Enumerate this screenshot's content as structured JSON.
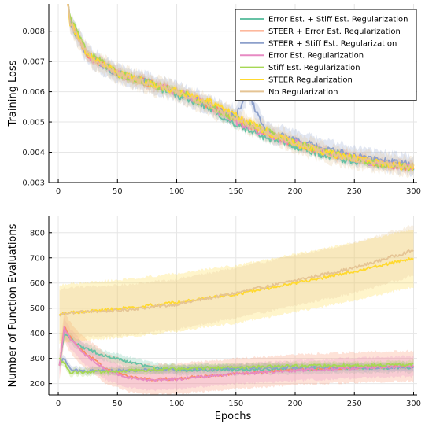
{
  "chart_data": [
    {
      "type": "line",
      "ylabel": "Training Loss",
      "xlabel": "",
      "xlim": [
        -8,
        303
      ],
      "ylim": [
        0.003,
        0.0089
      ],
      "xticks": [
        0,
        50,
        100,
        150,
        200,
        250,
        300
      ],
      "yticks": [
        0.003,
        0.004,
        0.005,
        0.006,
        0.007,
        0.008
      ],
      "ytick_labels": [
        "0.003",
        "0.004",
        "0.005",
        "0.006",
        "0.007",
        "0.008"
      ],
      "grid": true,
      "legend_position": "top-right",
      "series": [
        {
          "name": "Error Est. + Stiff Est. Regularization",
          "color": "#66c2a5",
          "x": [
            1,
            10,
            25,
            50,
            75,
            100,
            125,
            150,
            175,
            200,
            225,
            250,
            275,
            300
          ],
          "y": [
            0.0115,
            0.0083,
            0.0072,
            0.0066,
            0.0063,
            0.0059,
            0.0055,
            0.0049,
            0.0045,
            0.0042,
            0.0039,
            0.0037,
            0.0036,
            0.0035
          ],
          "band": 0.0001
        },
        {
          "name": "STEER + Error Est. Regularization",
          "color": "#fc8d62",
          "x": [
            1,
            10,
            25,
            50,
            75,
            100,
            125,
            150,
            175,
            200,
            225,
            250,
            275,
            300
          ],
          "y": [
            0.0115,
            0.0083,
            0.0072,
            0.0066,
            0.0063,
            0.006,
            0.0056,
            0.0051,
            0.0046,
            0.0043,
            0.004,
            0.0038,
            0.0036,
            0.0035
          ],
          "band": 0.00015
        },
        {
          "name": "STEER + Stiff Est. Regularization",
          "color": "#8da0cb",
          "x": [
            1,
            10,
            25,
            50,
            75,
            100,
            125,
            150,
            160,
            175,
            200,
            225,
            250,
            275,
            300
          ],
          "y": [
            0.0115,
            0.0083,
            0.0072,
            0.0066,
            0.0063,
            0.006,
            0.0056,
            0.0052,
            0.006,
            0.0047,
            0.0044,
            0.0041,
            0.0039,
            0.0037,
            0.0036
          ],
          "band": 0.0003
        },
        {
          "name": "Error Est. Regularization",
          "color": "#e78ac3",
          "x": [
            1,
            10,
            25,
            50,
            75,
            100,
            125,
            150,
            175,
            200,
            225,
            250,
            275,
            300
          ],
          "y": [
            0.0115,
            0.0083,
            0.0072,
            0.0066,
            0.0063,
            0.006,
            0.0056,
            0.005,
            0.0046,
            0.0043,
            0.004,
            0.0038,
            0.0036,
            0.0035
          ],
          "band": 0.0001
        },
        {
          "name": "Stiff Est. Regularization",
          "color": "#a6d854",
          "x": [
            1,
            10,
            25,
            50,
            75,
            100,
            125,
            150,
            175,
            200,
            225,
            250,
            275,
            300
          ],
          "y": [
            0.0115,
            0.0084,
            0.0073,
            0.0066,
            0.0063,
            0.006,
            0.0056,
            0.0051,
            0.0047,
            0.0043,
            0.004,
            0.0038,
            0.0036,
            0.0035
          ],
          "band": 0.0001
        },
        {
          "name": "STEER Regularization",
          "color": "#ffd92f",
          "x": [
            1,
            10,
            25,
            50,
            75,
            100,
            125,
            150,
            175,
            200,
            225,
            250,
            275,
            300
          ],
          "y": [
            0.0115,
            0.0083,
            0.0072,
            0.0066,
            0.0063,
            0.006,
            0.0057,
            0.0052,
            0.0047,
            0.0043,
            0.004,
            0.0038,
            0.0036,
            0.0035
          ],
          "band": 0.0001
        },
        {
          "name": "No Regularization",
          "color": "#e5c494",
          "x": [
            1,
            10,
            25,
            50,
            75,
            100,
            125,
            150,
            175,
            200,
            225,
            250,
            275,
            300
          ],
          "y": [
            0.0115,
            0.0083,
            0.0072,
            0.0066,
            0.0063,
            0.006,
            0.0056,
            0.0051,
            0.0047,
            0.0043,
            0.004,
            0.0038,
            0.0036,
            0.0035
          ],
          "band": 0.0003
        }
      ]
    },
    {
      "type": "line",
      "ylabel": "Number of Function Evaluations",
      "xlabel": "Epochs",
      "xlim": [
        -8,
        303
      ],
      "ylim": [
        155,
        865
      ],
      "xticks": [
        0,
        50,
        100,
        150,
        200,
        250,
        300
      ],
      "yticks": [
        200,
        300,
        400,
        500,
        600,
        700,
        800
      ],
      "ytick_labels": [
        "200",
        "300",
        "400",
        "500",
        "600",
        "700",
        "800"
      ],
      "grid": true,
      "series": [
        {
          "name": "Error Est. + Stiff Est. Regularization",
          "color": "#66c2a5",
          "x": [
            1,
            5,
            10,
            20,
            40,
            60,
            80,
            100,
            150,
            200,
            250,
            300
          ],
          "y": [
            270,
            400,
            380,
            345,
            310,
            285,
            262,
            255,
            255,
            258,
            262,
            265
          ],
          "band": 20
        },
        {
          "name": "STEER + Error Est. Regularization",
          "color": "#fc8d62",
          "x": [
            1,
            5,
            10,
            20,
            40,
            60,
            80,
            100,
            150,
            200,
            250,
            300
          ],
          "y": [
            270,
            425,
            385,
            330,
            260,
            225,
            215,
            220,
            240,
            255,
            265,
            270
          ],
          "band": 60
        },
        {
          "name": "STEER + Stiff Est. Regularization",
          "color": "#8da0cb",
          "x": [
            1,
            5,
            10,
            20,
            40,
            60,
            80,
            100,
            150,
            200,
            250,
            300
          ],
          "y": [
            280,
            300,
            255,
            250,
            250,
            252,
            255,
            258,
            262,
            265,
            265,
            265
          ],
          "band": 15
        },
        {
          "name": "Error Est. Regularization",
          "color": "#e78ac3",
          "x": [
            1,
            5,
            10,
            20,
            40,
            60,
            80,
            100,
            150,
            200,
            250,
            300
          ],
          "y": [
            270,
            420,
            380,
            325,
            255,
            222,
            212,
            218,
            238,
            252,
            262,
            268
          ],
          "band": 40
        },
        {
          "name": "Stiff Est. Regularization",
          "color": "#a6d854",
          "x": [
            1,
            5,
            10,
            20,
            40,
            60,
            80,
            100,
            150,
            200,
            250,
            300
          ],
          "y": [
            300,
            280,
            245,
            245,
            248,
            252,
            256,
            260,
            265,
            270,
            272,
            275
          ],
          "band": 15
        },
        {
          "name": "STEER Regularization",
          "color": "#ffd92f",
          "x": [
            1,
            5,
            10,
            20,
            50,
            100,
            150,
            200,
            250,
            300
          ],
          "y": [
            470,
            480,
            482,
            486,
            497,
            523,
            555,
            600,
            645,
            700
          ],
          "band": 115
        },
        {
          "name": "No Regularization",
          "color": "#e5c494",
          "x": [
            1,
            5,
            10,
            20,
            50,
            100,
            150,
            200,
            250,
            300
          ],
          "y": [
            470,
            480,
            482,
            485,
            490,
            515,
            560,
            610,
            660,
            730
          ],
          "band": 100
        }
      ]
    }
  ]
}
